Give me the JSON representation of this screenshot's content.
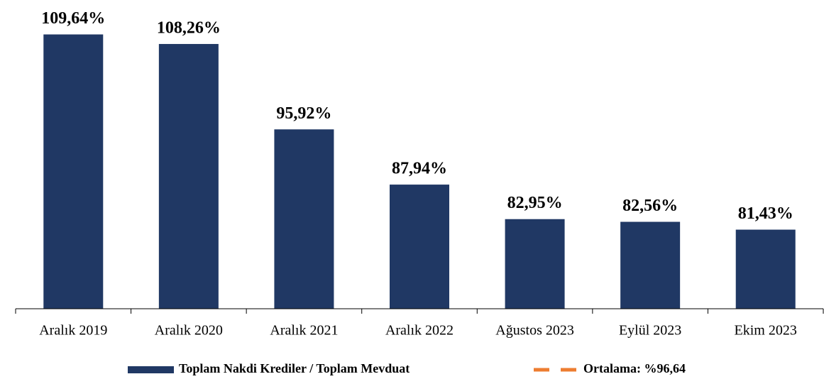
{
  "chart_data": {
    "type": "bar",
    "categories": [
      "Aralık 2019",
      "Aralık 2020",
      "Aralık 2021",
      "Aralık 2022",
      "Ağustos 2023",
      "Eylül 2023",
      "Ekim 2023"
    ],
    "series": [
      {
        "name": "Toplam Nakdi Krediler / Toplam Mevduat",
        "color": "#203864",
        "values": [
          109.64,
          108.26,
          95.92,
          87.94,
          82.95,
          82.56,
          81.43
        ],
        "value_labels": [
          "109,64%",
          "108,26%",
          "95,92%",
          "87,94%",
          "82,95%",
          "82,56%",
          "81,43%"
        ]
      }
    ],
    "average": {
      "name": "Ortalama: %96,64",
      "value": 96.64,
      "color": "#ed7d31"
    },
    "ylim": [
      70,
      110
    ]
  }
}
